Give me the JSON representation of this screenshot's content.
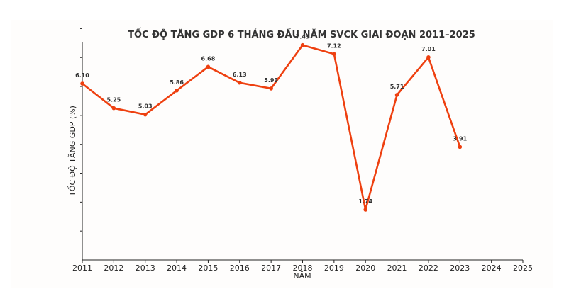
{
  "chart_data": {
    "type": "line",
    "title": "TỐC ĐỘ TĂNG GDP 6 THÁNG ĐẦU NĂM SVCK GIAI ĐOẠN 2011–2025",
    "xlabel": "NĂM",
    "ylabel": "TỐC ĐỘ TĂNG GDP (%)",
    "xlim": [
      2011,
      2025
    ],
    "ylim": [
      0,
      8.5
    ],
    "x_ticks": [
      "2011",
      "2012",
      "2013",
      "2014",
      "2015",
      "2016",
      "2017",
      "2018",
      "2019",
      "2020",
      "2021",
      "2022",
      "2023",
      "2024",
      "2025"
    ],
    "y_ticks_labeled": false,
    "grid": false,
    "series": [
      {
        "color": "#ee4010",
        "x": [
          2011,
          2012,
          2013,
          2014,
          2015,
          2016,
          2017,
          2018,
          2019,
          2020,
          2021,
          2022,
          2023
        ],
        "values": [
          6.1,
          5.25,
          5.03,
          5.86,
          6.68,
          6.13,
          5.93,
          7.43,
          7.12,
          1.74,
          5.71,
          7.01,
          3.91
        ],
        "labels": [
          "6.10",
          "5.25",
          "5.03",
          "5.86",
          "6.68",
          "6.13",
          "5.93",
          "7.43",
          "7.12",
          "1.74",
          "5.71",
          "7.01",
          "3.91"
        ]
      }
    ]
  }
}
